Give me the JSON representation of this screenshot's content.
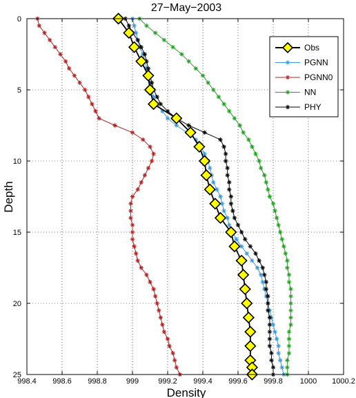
{
  "chart_data": {
    "type": "line",
    "title": "27−May−2003",
    "xlabel": "Density",
    "ylabel": "Depth",
    "xlim": [
      998.4,
      1000.2
    ],
    "ylim": [
      0,
      25
    ],
    "y_reversed": true,
    "grid": true,
    "legend_position": "top-right",
    "x_ticks": [
      998.4,
      998.6,
      998.8,
      999,
      999.2,
      999.4,
      999.6,
      999.8,
      1000,
      1000.2
    ],
    "x_tick_labels": [
      "998.4",
      "998.6",
      "998.8",
      "999",
      "999.2",
      "999.4",
      "999.6",
      "999.8",
      "1000",
      "1000.2"
    ],
    "y_ticks": [
      0,
      5,
      10,
      15,
      20,
      25
    ],
    "y_tick_labels": [
      "0",
      "5",
      "10",
      "15",
      "20",
      "25"
    ],
    "series": [
      {
        "name": "Obs",
        "color": "#000000",
        "marker": "diamond",
        "marker_fill": "#ffff00",
        "depth": [
          0,
          1,
          2,
          3,
          4,
          5,
          6,
          7,
          8,
          9,
          10,
          11,
          12,
          13,
          14,
          15,
          16,
          17,
          18,
          19,
          20,
          21,
          22,
          23,
          24,
          24.5,
          25
        ],
        "density": [
          998.92,
          998.98,
          999.01,
          999.05,
          999.09,
          999.1,
          999.12,
          999.25,
          999.33,
          999.38,
          999.41,
          999.42,
          999.44,
          999.47,
          999.5,
          999.56,
          999.58,
          999.62,
          999.63,
          999.64,
          999.65,
          999.66,
          999.67,
          999.67,
          999.67,
          999.68,
          999.68
        ]
      },
      {
        "name": "PGNN",
        "color": "#3a9ad9",
        "marker": "star",
        "depth": [
          0,
          0.5,
          1,
          1.5,
          2,
          2.5,
          3,
          3.5,
          4,
          4.5,
          5,
          5.5,
          6,
          6.5,
          7,
          7.5,
          8,
          8.5,
          9,
          9.5,
          10,
          10.5,
          11,
          11.5,
          12,
          12.5,
          13,
          13.5,
          14,
          14.5,
          15,
          15.5,
          16,
          16.5,
          17,
          17.5,
          18,
          18.5,
          19,
          19.5,
          20,
          20.5,
          21,
          21.5,
          22,
          22.5,
          23,
          23.5,
          24,
          24.5,
          25
        ],
        "density": [
          999.0,
          999.01,
          999.02,
          999.03,
          999.04,
          999.06,
          999.07,
          999.08,
          999.09,
          999.1,
          999.11,
          999.12,
          999.14,
          999.17,
          999.2,
          999.25,
          999.31,
          999.36,
          999.39,
          999.41,
          999.43,
          999.44,
          999.45,
          999.46,
          999.48,
          999.5,
          999.51,
          999.52,
          999.54,
          999.55,
          999.57,
          999.59,
          999.62,
          999.65,
          999.68,
          999.71,
          999.73,
          999.74,
          999.75,
          999.76,
          999.77,
          999.78,
          999.79,
          999.8,
          999.81,
          999.82,
          999.83,
          999.83,
          999.84,
          999.85,
          999.86
        ]
      },
      {
        "name": "PGNN0",
        "color": "#b22222",
        "marker": "star",
        "depth": [
          0,
          0.5,
          1,
          1.5,
          2,
          2.5,
          3,
          3.5,
          4,
          4.5,
          5,
          5.5,
          6,
          6.5,
          7,
          7.5,
          8,
          8.5,
          9,
          9.5,
          10,
          10.5,
          11,
          11.5,
          12,
          12.5,
          13,
          13.5,
          14,
          14.5,
          15,
          15.5,
          16,
          16.5,
          17,
          17.5,
          18,
          18.5,
          19,
          19.5,
          20,
          20.5,
          21,
          21.5,
          22,
          22.5,
          23,
          23.5,
          24,
          24.5,
          25
        ],
        "density": [
          998.46,
          998.47,
          998.5,
          998.53,
          998.56,
          998.59,
          998.62,
          998.64,
          998.67,
          998.7,
          998.73,
          998.75,
          998.77,
          998.79,
          998.81,
          998.9,
          999.0,
          999.06,
          999.1,
          999.12,
          999.11,
          999.09,
          999.07,
          999.05,
          999.03,
          999.0,
          998.99,
          998.99,
          998.99,
          999.0,
          999.0,
          999.0,
          999.01,
          999.02,
          999.03,
          999.05,
          999.08,
          999.1,
          999.12,
          999.13,
          999.14,
          999.15,
          999.16,
          999.17,
          999.18,
          999.2,
          999.21,
          999.23,
          999.24,
          999.25,
          999.27
        ]
      },
      {
        "name": "NN",
        "color": "#22a022",
        "marker": "star",
        "depth": [
          0,
          0.5,
          1,
          1.5,
          2,
          2.5,
          3,
          3.5,
          4,
          4.5,
          5,
          5.5,
          6,
          6.5,
          7,
          7.5,
          8,
          8.5,
          9,
          9.5,
          10,
          10.5,
          11,
          11.5,
          12,
          12.5,
          13,
          13.5,
          14,
          14.5,
          15,
          15.5,
          16,
          16.5,
          17,
          17.5,
          18,
          18.5,
          19,
          19.5,
          20,
          20.5,
          21,
          21.5,
          22,
          22.5,
          23,
          23.5,
          24,
          24.5,
          25
        ],
        "density": [
          999.04,
          999.08,
          999.13,
          999.18,
          999.23,
          999.28,
          999.32,
          999.36,
          999.4,
          999.43,
          999.46,
          999.49,
          999.52,
          999.55,
          999.58,
          999.61,
          999.63,
          999.66,
          999.68,
          999.7,
          999.72,
          999.73,
          999.75,
          999.76,
          999.77,
          999.78,
          999.8,
          999.81,
          999.82,
          999.83,
          999.84,
          999.85,
          999.86,
          999.87,
          999.88,
          999.88,
          999.89,
          999.89,
          999.9,
          999.9,
          999.9,
          999.9,
          999.9,
          999.9,
          999.89,
          999.89,
          999.89,
          999.89,
          999.88,
          999.88,
          999.88
        ]
      },
      {
        "name": "PHY",
        "color": "#000000",
        "marker": "star",
        "depth": [
          0,
          0.5,
          1,
          1.5,
          2,
          2.5,
          3,
          3.5,
          4,
          4.5,
          5,
          5.5,
          6,
          6.5,
          7,
          7.5,
          8,
          8.5,
          9,
          9.5,
          10,
          10.5,
          11,
          11.5,
          12,
          12.5,
          13,
          13.5,
          14,
          14.5,
          15,
          15.5,
          16,
          16.5,
          17,
          17.5,
          18,
          18.5,
          19,
          19.5,
          20,
          20.5,
          21,
          21.5,
          22,
          22.5,
          23,
          23.5,
          24,
          24.5,
          25
        ],
        "density": [
          998.96,
          998.98,
          999.0,
          999.03,
          999.05,
          999.07,
          999.08,
          999.09,
          999.1,
          999.11,
          999.12,
          999.14,
          999.16,
          999.2,
          999.25,
          999.32,
          999.41,
          999.5,
          999.52,
          999.53,
          999.53,
          999.54,
          999.54,
          999.55,
          999.55,
          999.56,
          999.56,
          999.57,
          999.58,
          999.6,
          999.62,
          999.64,
          999.67,
          999.7,
          999.72,
          999.74,
          999.75,
          999.76,
          999.76,
          999.77,
          999.77,
          999.77,
          999.78,
          999.78,
          999.78,
          999.78,
          999.78,
          999.79,
          999.79,
          999.8,
          999.8
        ]
      }
    ]
  }
}
